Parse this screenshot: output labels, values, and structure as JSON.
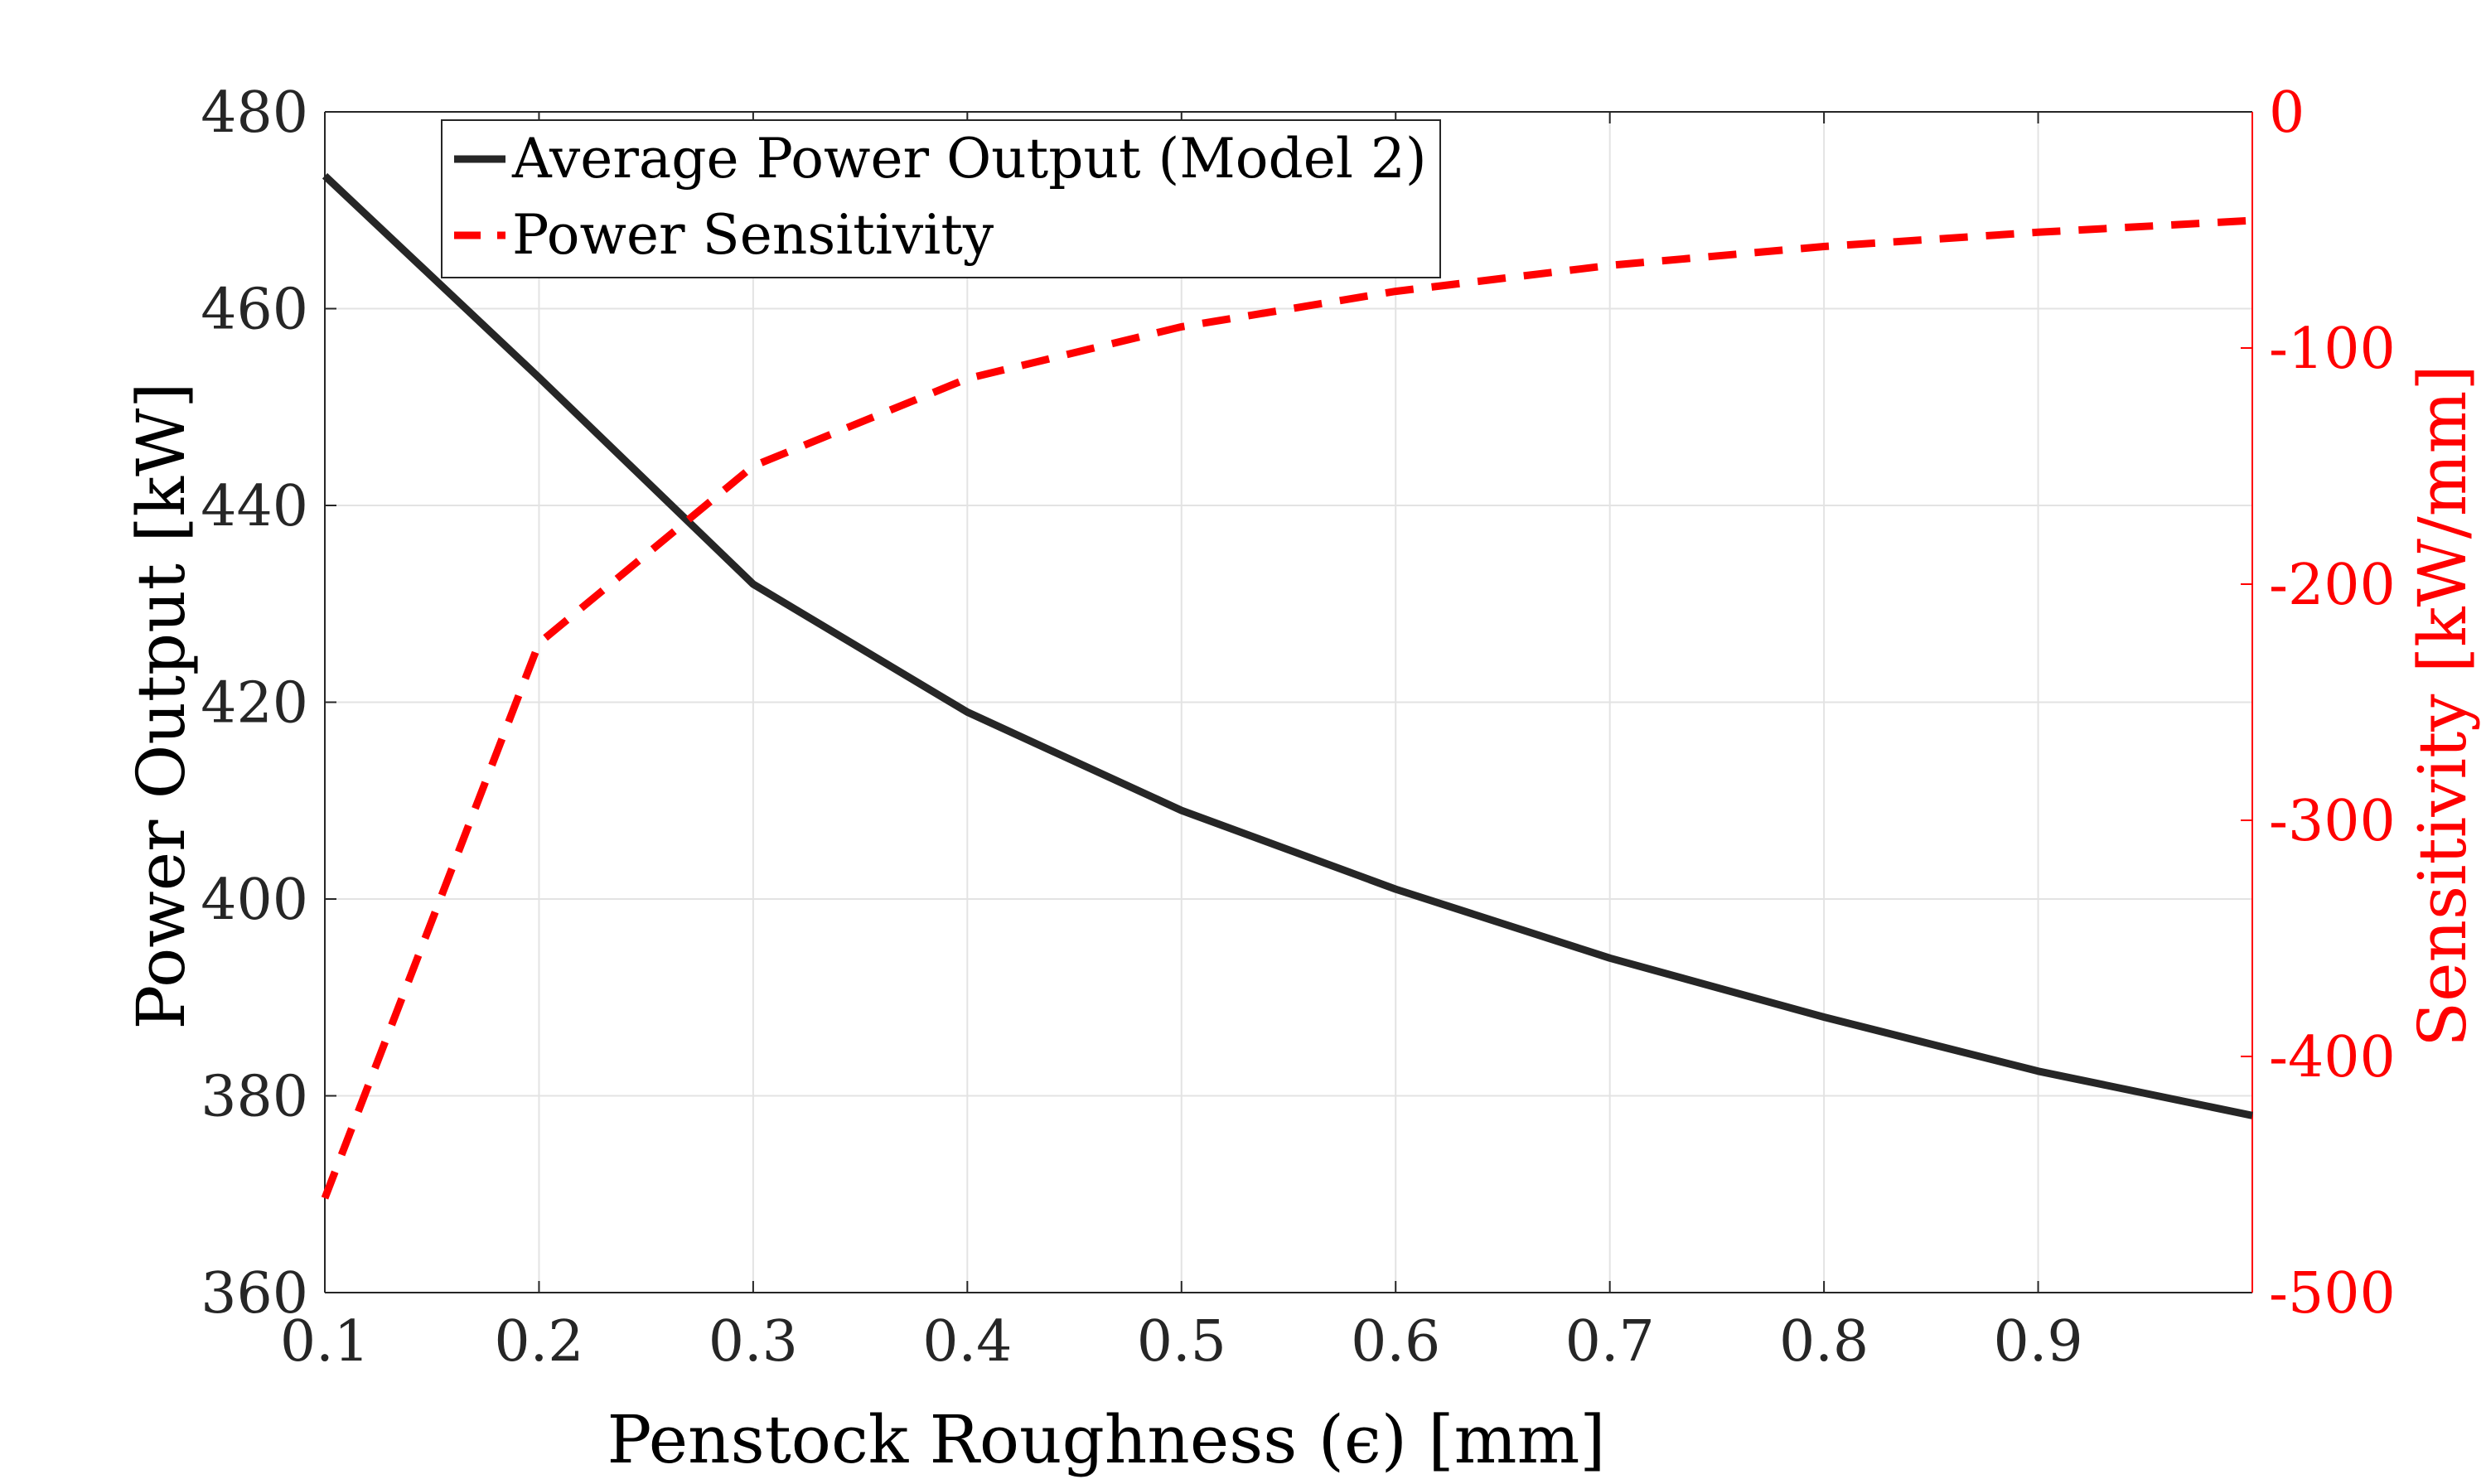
{
  "chart_data": {
    "type": "line",
    "xlabel": "Penstock Roughness (ϵ) [mm]",
    "ylabel_left": "Power Output [kW]",
    "ylabel_right": "Sensitivity [kW/mm]",
    "xlim": [
      0.1,
      1.0
    ],
    "ylim_left": [
      360,
      480
    ],
    "ylim_right": [
      -500,
      0
    ],
    "xticks": [
      "0.1",
      "0.2",
      "0.3",
      "0.4",
      "0.5",
      "0.6",
      "0.7",
      "0.8",
      "0.9"
    ],
    "yticks_left": [
      "360",
      "380",
      "400",
      "420",
      "440",
      "460",
      "480"
    ],
    "yticks_right": [
      "-500",
      "-400",
      "-300",
      "-200",
      "-100",
      "0"
    ],
    "grid": true,
    "legend_position": "top-left",
    "series": [
      {
        "name": "Average Power Output (Model 2)",
        "axis": "left",
        "style": "solid",
        "color": "#262626",
        "x": [
          0.1,
          0.2,
          0.3,
          0.4,
          0.5,
          0.6,
          0.7,
          0.8,
          0.9,
          1.0
        ],
        "y": [
          473.5,
          453,
          432,
          419,
          409,
          401,
          394,
          388,
          382.5,
          378
        ]
      },
      {
        "name": "Power Sensitivity",
        "axis": "right",
        "style": "dashed",
        "color": "#ff0000",
        "x": [
          0.1,
          0.2,
          0.3,
          0.4,
          0.5,
          0.6,
          0.7,
          0.8,
          0.9,
          1.0
        ],
        "y": [
          -460,
          -225,
          -150,
          -113,
          -91,
          -76,
          -65,
          -57,
          -51,
          -46
        ]
      }
    ]
  }
}
